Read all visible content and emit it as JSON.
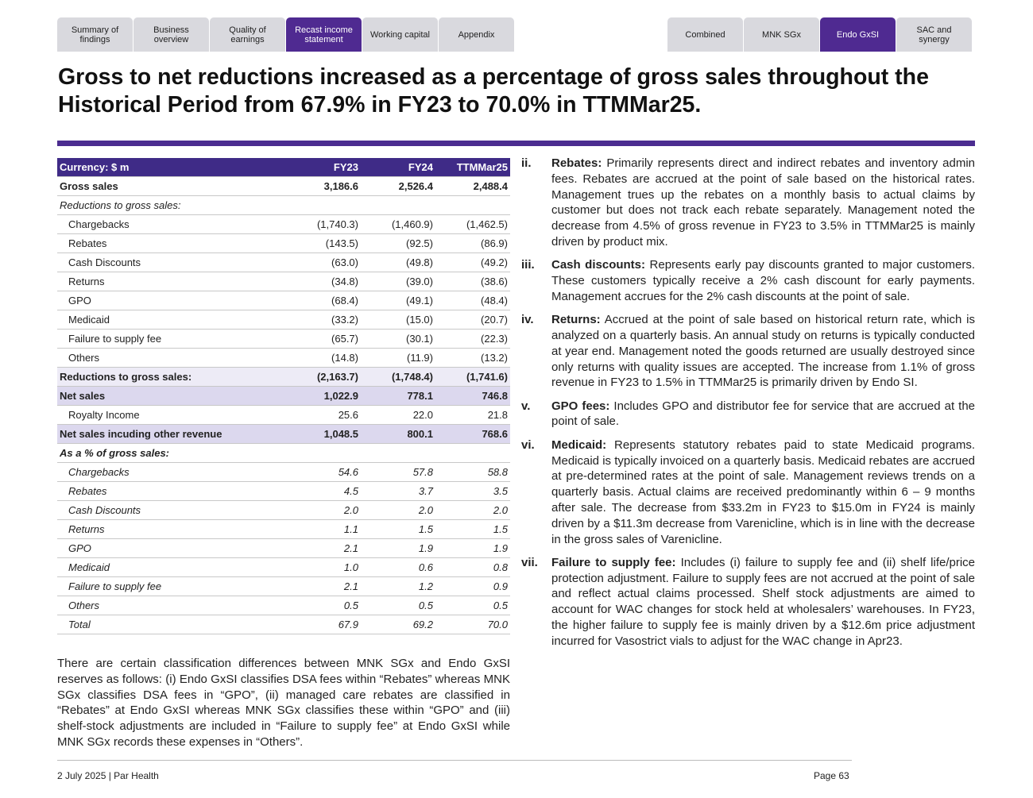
{
  "nav_left": [
    "Summary of findings",
    "Business overview",
    "Quality of earnings",
    "Recast income statement",
    "Working capital",
    "Appendix"
  ],
  "nav_right": [
    "Combined",
    "MNK SGx",
    "Endo GxSI",
    "SAC and synergy"
  ],
  "title": "Gross to net reductions increased as a percentage of gross sales throughout the Historical Period from 67.9% in FY23 to 70.0% in TTMMar25.",
  "table": {
    "header": [
      "Currency: $ m",
      "FY23",
      "FY24",
      "TTMMar25"
    ],
    "rows": [
      [
        "Gross sales",
        "3,186.6",
        "2,526.4",
        "2,488.4"
      ],
      [
        "Reductions to gross sales:"
      ],
      [
        "Chargebacks",
        "(1,740.3)",
        "(1,460.9)",
        "(1,462.5)"
      ],
      [
        "Rebates",
        "(143.5)",
        "(92.5)",
        "(86.9)"
      ],
      [
        "Cash Discounts",
        "(63.0)",
        "(49.8)",
        "(49.2)"
      ],
      [
        "Returns",
        "(34.8)",
        "(39.0)",
        "(38.6)"
      ],
      [
        "GPO",
        "(68.4)",
        "(49.1)",
        "(48.4)"
      ],
      [
        "Medicaid",
        "(33.2)",
        "(15.0)",
        "(20.7)"
      ],
      [
        "Failure to supply fee",
        "(65.7)",
        "(30.1)",
        "(22.3)"
      ],
      [
        "Others",
        "(14.8)",
        "(11.9)",
        "(13.2)"
      ],
      [
        "Reductions to gross sales:",
        "(2,163.7)",
        "(1,748.4)",
        "(1,741.6)"
      ],
      [
        "Net sales",
        "1,022.9",
        "778.1",
        "746.8"
      ],
      [
        "Royalty Income",
        "25.6",
        "22.0",
        "21.8"
      ],
      [
        "Net sales incuding other revenue",
        "1,048.5",
        "800.1",
        "768.6"
      ],
      [
        "As a % of gross sales:"
      ],
      [
        "Chargebacks",
        "54.6",
        "57.8",
        "58.8"
      ],
      [
        "Rebates",
        "4.5",
        "3.7",
        "3.5"
      ],
      [
        "Cash Discounts",
        "2.0",
        "2.0",
        "2.0"
      ],
      [
        "Returns",
        "1.1",
        "1.5",
        "1.5"
      ],
      [
        "GPO",
        "2.1",
        "1.9",
        "1.9"
      ],
      [
        "Medicaid",
        "1.0",
        "0.6",
        "0.8"
      ],
      [
        "Failure to supply fee",
        "2.1",
        "1.2",
        "0.9"
      ],
      [
        "Others",
        "0.5",
        "0.5",
        "0.5"
      ],
      [
        "Total",
        "67.9",
        "69.2",
        "70.0"
      ]
    ]
  },
  "note": "There are certain classification differences between MNK SGx and Endo GxSI reserves as follows: (i) Endo GxSI classifies DSA fees within “Rebates” whereas MNK SGx classifies DSA fees in “GPO”, (ii) managed care rebates are classified in “Rebates” at Endo GxSI whereas  MNK SGx classifies these within “GPO” and (iii) shelf-stock adjustments are included in “Failure to supply fee” at Endo GxSI while MNK SGx records these expenses in “Others”.",
  "items": [
    {
      "num": "ii.",
      "label": "Rebates:",
      "text": "Primarily represents direct and indirect rebates and inventory admin fees. Rebates are accrued at the point of sale based on the historical rates. Management trues up the rebates on a monthly basis to actual claims by customer but does not track each rebate separately. Management noted the decrease from 4.5% of gross revenue in FY23 to 3.5% in TTMMar25 is mainly driven by product mix."
    },
    {
      "num": "iii.",
      "label": "Cash discounts:",
      "text": "Represents early pay discounts granted to major customers. These customers typically receive a 2% cash discount for early payments. Management accrues for the 2% cash discounts at the point of sale."
    },
    {
      "num": "iv.",
      "label": "Returns:",
      "text": "Accrued at the point of sale based on historical return rate, which is analyzed on a quarterly basis. An annual study on returns is typically conducted at year end. Management noted the goods returned are usually destroyed since only returns with quality issues are accepted. The increase from 1.1% of gross revenue in FY23 to 1.5% in TTMMar25 is primarily driven by Endo SI."
    },
    {
      "num": "v.",
      "label": "GPO fees:",
      "text": "Includes GPO and distributor fee for service that are accrued at the point of sale."
    },
    {
      "num": "vi.",
      "label": "Medicaid:",
      "text": "Represents statutory rebates paid to state Medicaid programs. Medicaid is typically invoiced on a quarterly basis. Medicaid rebates are accrued at pre-determined rates at the point of sale. Management reviews trends on a quarterly basis. Actual claims are received predominantly within 6 – 9 months after sale. The decrease from $33.2m in FY23 to $15.0m in FY24 is mainly driven by a $11.3m decrease from Varenicline, which is in line with the decrease in the gross sales of Varenicline."
    },
    {
      "num": "vii.",
      "label": "Failure to supply fee:",
      "text": "Includes (i) failure to supply fee and (ii) shelf life/price protection adjustment. Failure to supply fees are not accrued at the point of sale and reflect actual claims processed. Shelf stock adjustments are aimed to account for WAC changes for stock held at wholesalers’ warehouses. In FY23, the higher failure to supply fee is mainly driven by a $12.6m price adjustment incurred for Vasostrict vials to adjust for the WAC change in Apr23."
    }
  ],
  "footer": {
    "left": "2 July 2025 | Par Health",
    "right": "Page 63"
  }
}
